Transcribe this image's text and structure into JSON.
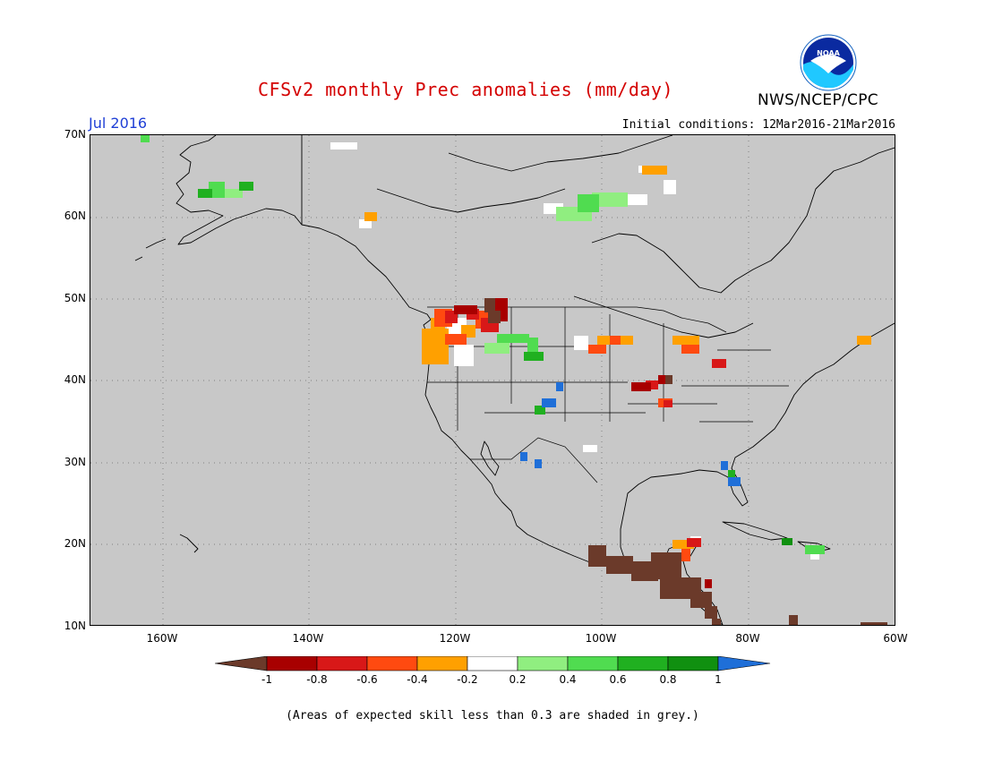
{
  "header": {
    "title": "CFSv2 monthly Prec anomalies (mm/day)",
    "agency": "NWS/NCEP/CPC",
    "logo_text": "NOAA",
    "month": "Jul 2016",
    "initial_conditions": "Initial conditions: 12Mar2016-21Mar2016"
  },
  "map": {
    "projection": "lat-lon",
    "lon_range": [
      -170,
      -60
    ],
    "lat_range": [
      10,
      70
    ],
    "lat_ticks": [
      {
        "value": 70,
        "label": "70N"
      },
      {
        "value": 60,
        "label": "60N"
      },
      {
        "value": 50,
        "label": "50N"
      },
      {
        "value": 40,
        "label": "40N"
      },
      {
        "value": 30,
        "label": "30N"
      },
      {
        "value": 20,
        "label": "20N"
      },
      {
        "value": 10,
        "label": "10N"
      }
    ],
    "lon_ticks": [
      {
        "value": -160,
        "label": "160W"
      },
      {
        "value": -140,
        "label": "140W"
      },
      {
        "value": -120,
        "label": "120W"
      },
      {
        "value": -100,
        "label": "100W"
      },
      {
        "value": -80,
        "label": "80W"
      },
      {
        "value": -60,
        "label": "60W"
      }
    ],
    "grid": "dotted",
    "background": "#c8c8c8"
  },
  "legend": {
    "min_arrow_color": "#6b3a2a",
    "max_arrow_color": "#1f6fd8",
    "bins": [
      {
        "color": "#a80000"
      },
      {
        "color": "#d81818"
      },
      {
        "color": "#ff4a10"
      },
      {
        "color": "#ffa000"
      },
      {
        "color": "#ffffff"
      },
      {
        "color": "#90ee80"
      },
      {
        "color": "#50dc50"
      },
      {
        "color": "#20b020"
      },
      {
        "color": "#109010"
      }
    ],
    "labels": [
      "-1",
      "-0.8",
      "-0.6",
      "-0.4",
      "-0.2",
      "0.2",
      "0.4",
      "0.6",
      "0.8",
      "1"
    ]
  },
  "footnote": "(Areas of expected skill less than 0.3 are shaded in grey.)"
}
